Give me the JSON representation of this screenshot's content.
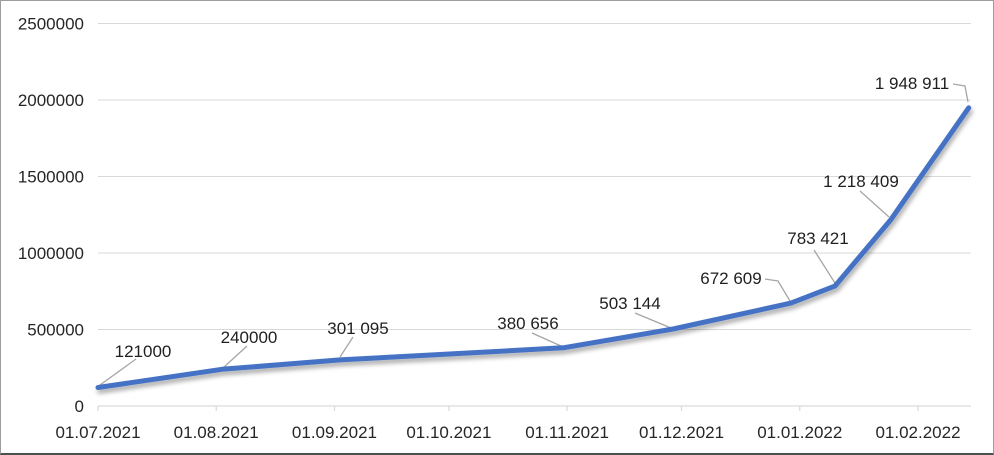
{
  "chart_data": {
    "type": "line",
    "title": "",
    "xlabel": "",
    "ylabel": "",
    "legend": "none",
    "grid": true,
    "x_axis": {
      "kind": "date",
      "tick_labels": [
        "01.07.2021",
        "01.08.2021",
        "01.09.2021",
        "01.10.2021",
        "01.11.2021",
        "01.12.2021",
        "01.01.2022",
        "01.02.2022"
      ],
      "tick_day_offsets": [
        0,
        31,
        62,
        92,
        123,
        153,
        184,
        215
      ],
      "xlim_days": [
        0,
        229
      ]
    },
    "y_axis": {
      "tick_labels": [
        "0",
        "500000",
        "1000000",
        "1500000",
        "2000000",
        "2500000"
      ],
      "tick_values": [
        0,
        500000,
        1000000,
        1500000,
        2000000,
        2500000
      ],
      "ylim": [
        0,
        2500000
      ]
    },
    "series": [
      {
        "name": "series-1",
        "points": [
          {
            "label": "121000",
            "value": 121000,
            "day": 0
          },
          {
            "label": "240000",
            "value": 240000,
            "day": 32.5
          },
          {
            "label": "301 095",
            "value": 301095,
            "day": 63.5
          },
          {
            "label": "380 656",
            "value": 380656,
            "day": 122
          },
          {
            "label": "503 144",
            "value": 503144,
            "day": 150.8
          },
          {
            "label": "672 609",
            "value": 672609,
            "day": 181.7
          },
          {
            "label": "783 421",
            "value": 783421,
            "day": 193.2
          },
          {
            "label": "1 218 409",
            "value": 1218409,
            "day": 207.9
          },
          {
            "label": "1 948 911",
            "value": 1948911,
            "day": 228.3
          }
        ]
      }
    ],
    "colors": {
      "line": "#4472C4",
      "gridline": "#D9D9D9",
      "axis_line": "#D9D9D9",
      "leader_line": "#A6A6A6",
      "text": "#262626"
    }
  }
}
